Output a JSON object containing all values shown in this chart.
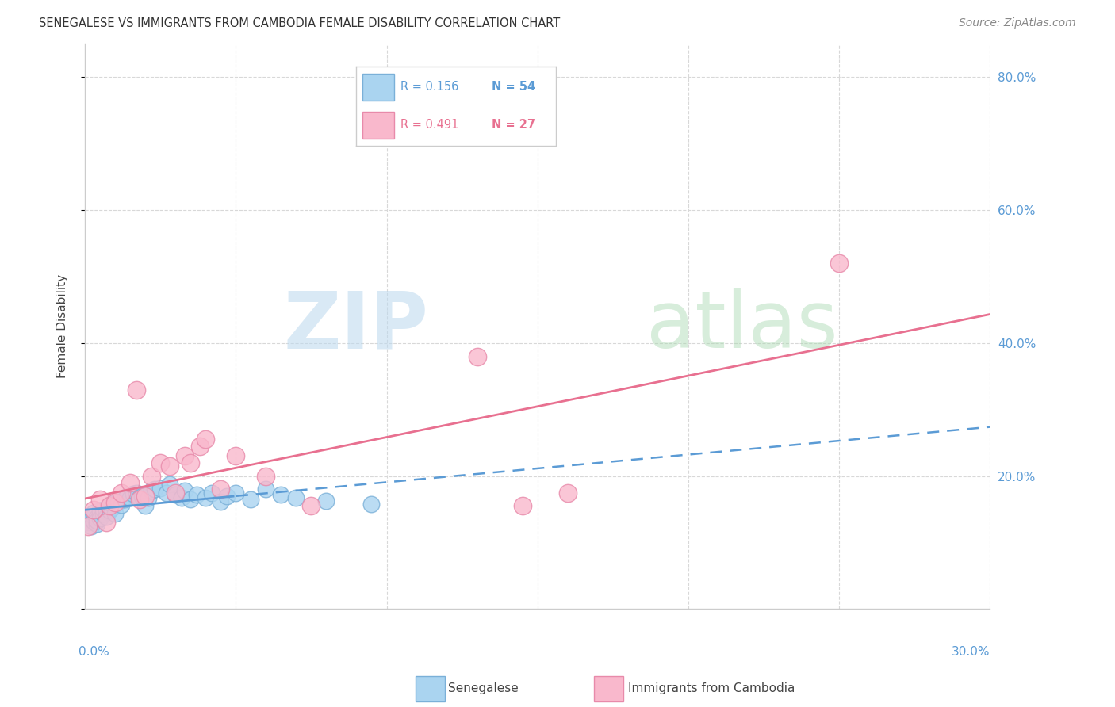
{
  "title": "SENEGALESE VS IMMIGRANTS FROM CAMBODIA FEMALE DISABILITY CORRELATION CHART",
  "source": "Source: ZipAtlas.com",
  "ylabel": "Female Disability",
  "xlim": [
    0.0,
    0.3
  ],
  "ylim": [
    0.0,
    0.85
  ],
  "xticks": [
    0.0,
    0.05,
    0.1,
    0.15,
    0.2,
    0.25,
    0.3
  ],
  "yticks": [
    0.0,
    0.2,
    0.4,
    0.6,
    0.8
  ],
  "right_ytick_color": "#5b9bd5",
  "background_color": "#ffffff",
  "grid_color": "#d8d8d8",
  "senegalese_color": "#aad4f0",
  "cambodia_color": "#f9b8cc",
  "senegalese_edge": "#7ab0d8",
  "cambodia_edge": "#e88aaa",
  "trend1_color": "#5b9bd5",
  "trend2_color": "#e87090",
  "senegalese_x": [
    0.001,
    0.002,
    0.002,
    0.003,
    0.003,
    0.003,
    0.004,
    0.004,
    0.004,
    0.005,
    0.005,
    0.005,
    0.006,
    0.006,
    0.007,
    0.007,
    0.008,
    0.008,
    0.009,
    0.009,
    0.01,
    0.01,
    0.011,
    0.012,
    0.013,
    0.014,
    0.015,
    0.016,
    0.017,
    0.018,
    0.019,
    0.02,
    0.021,
    0.022,
    0.023,
    0.025,
    0.027,
    0.028,
    0.03,
    0.032,
    0.033,
    0.035,
    0.037,
    0.04,
    0.042,
    0.045,
    0.047,
    0.05,
    0.055,
    0.06,
    0.065,
    0.07,
    0.08,
    0.095
  ],
  "senegalese_y": [
    0.13,
    0.135,
    0.125,
    0.14,
    0.132,
    0.145,
    0.128,
    0.138,
    0.133,
    0.142,
    0.148,
    0.136,
    0.143,
    0.15,
    0.147,
    0.139,
    0.155,
    0.148,
    0.152,
    0.158,
    0.16,
    0.143,
    0.162,
    0.157,
    0.165,
    0.17,
    0.168,
    0.173,
    0.175,
    0.168,
    0.17,
    0.155,
    0.167,
    0.178,
    0.18,
    0.182,
    0.175,
    0.188,
    0.172,
    0.168,
    0.178,
    0.165,
    0.172,
    0.168,
    0.175,
    0.162,
    0.17,
    0.175,
    0.165,
    0.18,
    0.172,
    0.168,
    0.163,
    0.158
  ],
  "cambodia_x": [
    0.001,
    0.003,
    0.005,
    0.007,
    0.008,
    0.01,
    0.012,
    0.015,
    0.017,
    0.018,
    0.02,
    0.022,
    0.025,
    0.028,
    0.03,
    0.033,
    0.035,
    0.038,
    0.04,
    0.045,
    0.05,
    0.06,
    0.075,
    0.13,
    0.145,
    0.16,
    0.25
  ],
  "cambodia_y": [
    0.125,
    0.15,
    0.165,
    0.13,
    0.155,
    0.16,
    0.175,
    0.19,
    0.33,
    0.165,
    0.17,
    0.2,
    0.22,
    0.215,
    0.175,
    0.23,
    0.22,
    0.245,
    0.255,
    0.18,
    0.23,
    0.2,
    0.155,
    0.38,
    0.155,
    0.175,
    0.52
  ],
  "watermark_zip_color": "#cce0f0",
  "watermark_atlas_color": "#cce8d8"
}
